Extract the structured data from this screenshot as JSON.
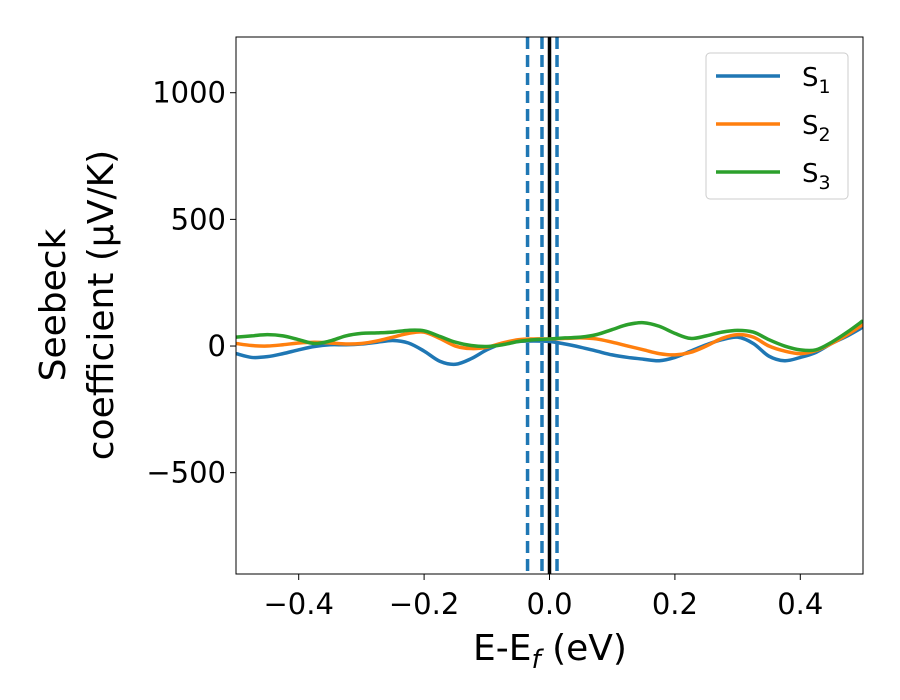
{
  "chart_data": {
    "type": "line",
    "xlabel_main": "E-E",
    "xlabel_sub": "f",
    "xlabel_unit": " (eV)",
    "ylabel_line1": "Seebeck",
    "ylabel_line2": "coefficient  (μV/K)",
    "xlim": [
      -0.5,
      0.5
    ],
    "ylim": [
      -900,
      1220
    ],
    "xticks": [
      -0.4,
      -0.2,
      0.0,
      0.2,
      0.4
    ],
    "xtick_labels": [
      "−0.4",
      "−0.2",
      "0.0",
      "0.2",
      "0.4"
    ],
    "yticks": [
      -500,
      0,
      500,
      1000
    ],
    "ytick_labels": [
      "−500",
      "0",
      "500",
      "1000"
    ],
    "grid": false,
    "legend_position": "top-right",
    "x": [
      -0.5,
      -0.475,
      -0.45,
      -0.425,
      -0.4,
      -0.375,
      -0.35,
      -0.325,
      -0.3,
      -0.275,
      -0.25,
      -0.225,
      -0.2,
      -0.175,
      -0.15,
      -0.125,
      -0.1,
      -0.075,
      -0.05,
      -0.025,
      0.0,
      0.025,
      0.05,
      0.075,
      0.1,
      0.125,
      0.15,
      0.175,
      0.2,
      0.225,
      0.25,
      0.275,
      0.3,
      0.325,
      0.35,
      0.375,
      0.4,
      0.425,
      0.45,
      0.475,
      0.5
    ],
    "series": [
      {
        "name": "S",
        "name_sub": "1",
        "color": "#1f77b4",
        "values": [
          -30,
          -45,
          -42,
          -30,
          -15,
          -2,
          5,
          5,
          8,
          15,
          22,
          12,
          -20,
          -60,
          -72,
          -50,
          -15,
          10,
          18,
          20,
          18,
          8,
          -5,
          -20,
          -35,
          -45,
          -52,
          -58,
          -45,
          -20,
          5,
          25,
          35,
          10,
          -40,
          -58,
          -45,
          -25,
          10,
          40,
          75
        ]
      },
      {
        "name": "S",
        "name_sub": "2",
        "color": "#ff7f0e",
        "values": [
          10,
          2,
          0,
          5,
          12,
          15,
          12,
          8,
          10,
          20,
          35,
          50,
          55,
          30,
          0,
          -10,
          -5,
          12,
          25,
          28,
          28,
          30,
          32,
          28,
          15,
          0,
          -15,
          -30,
          -35,
          -25,
          0,
          30,
          45,
          35,
          0,
          -20,
          -30,
          -18,
          10,
          45,
          85
        ]
      },
      {
        "name": "S",
        "name_sub": "3",
        "color": "#2ca02c",
        "values": [
          35,
          40,
          45,
          40,
          25,
          10,
          20,
          40,
          50,
          52,
          55,
          62,
          60,
          38,
          15,
          2,
          -2,
          5,
          18,
          25,
          28,
          32,
          35,
          45,
          65,
          85,
          92,
          78,
          50,
          30,
          40,
          55,
          62,
          55,
          25,
          0,
          -15,
          -15,
          15,
          55,
          100
        ]
      }
    ],
    "vlines_dashed": [
      -0.035,
      -0.012,
      0.012
    ],
    "vline_dashed_color": "#1f77b4",
    "vline_solid": 0.0,
    "vline_solid_color": "#000000"
  }
}
